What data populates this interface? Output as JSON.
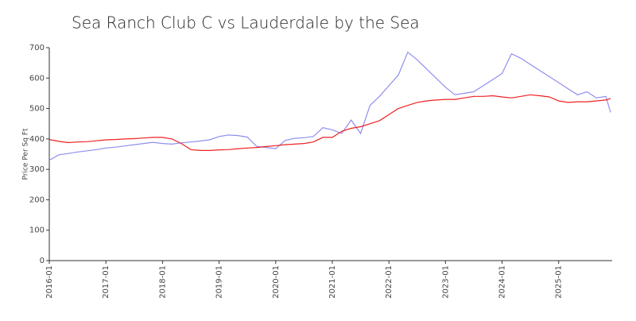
{
  "chart_data": {
    "type": "line",
    "title": "Sea Ranch Club C vs Lauderdale by the Sea",
    "y_label": "Price Per Sq Ft",
    "x": [
      "2016-01",
      "2016-03",
      "2016-05",
      "2016-07",
      "2016-09",
      "2016-11",
      "2017-01",
      "2017-03",
      "2017-05",
      "2017-07",
      "2017-09",
      "2017-11",
      "2018-01",
      "2018-03",
      "2018-05",
      "2018-07",
      "2018-09",
      "2018-11",
      "2019-01",
      "2019-03",
      "2019-05",
      "2019-07",
      "2019-09",
      "2019-11",
      "2020-01",
      "2020-03",
      "2020-05",
      "2020-07",
      "2020-09",
      "2020-11",
      "2021-01",
      "2021-03",
      "2021-05",
      "2021-07",
      "2021-09",
      "2021-11",
      "2022-01",
      "2022-03",
      "2022-05",
      "2022-07",
      "2022-09",
      "2022-11",
      "2023-01",
      "2023-03",
      "2023-05",
      "2023-07",
      "2023-09",
      "2023-11",
      "2024-01",
      "2024-03",
      "2024-05",
      "2024-07",
      "2024-09",
      "2024-11",
      "2025-01",
      "2025-03",
      "2025-05",
      "2025-07",
      "2025-09",
      "2025-11",
      "2025-12"
    ],
    "series": [
      {
        "color": "#8f8fef",
        "values": [
          330,
          348,
          352,
          357,
          361,
          365,
          370,
          373,
          377,
          381,
          385,
          389,
          385,
          383,
          387,
          390,
          393,
          397,
          408,
          413,
          411,
          406,
          375,
          372,
          368,
          395,
          402,
          404,
          408,
          437,
          430,
          418,
          462,
          418,
          510,
          540,
          575,
          610,
          685,
          660,
          630,
          600,
          570,
          545,
          550,
          555,
          575,
          595,
          615,
          680,
          665,
          645,
          625,
          605,
          585,
          565,
          545,
          555,
          535,
          540,
          487
        ]
      },
      {
        "color": "#ee2222",
        "values": [
          398,
          392,
          388,
          390,
          391,
          394,
          397,
          398,
          400,
          401,
          403,
          405,
          405,
          400,
          385,
          365,
          362,
          362,
          364,
          365,
          368,
          370,
          372,
          375,
          378,
          381,
          383,
          385,
          390,
          405,
          405,
          425,
          435,
          440,
          450,
          460,
          480,
          500,
          510,
          520,
          525,
          528,
          530,
          530,
          535,
          540,
          540,
          542,
          538,
          535,
          540,
          545,
          542,
          538,
          525,
          520,
          522,
          522,
          525,
          528,
          533
        ]
      }
    ],
    "xlim": [
      "2016-01",
      "2025-12"
    ],
    "xticks": [
      "2016-01",
      "2017-01",
      "2018-01",
      "2019-01",
      "2020-01",
      "2021-01",
      "2022-01",
      "2023-01",
      "2024-01",
      "2025-01"
    ],
    "ylim": [
      0,
      700
    ],
    "yticks": [
      0,
      100,
      200,
      300,
      400,
      500,
      600,
      700
    ]
  }
}
